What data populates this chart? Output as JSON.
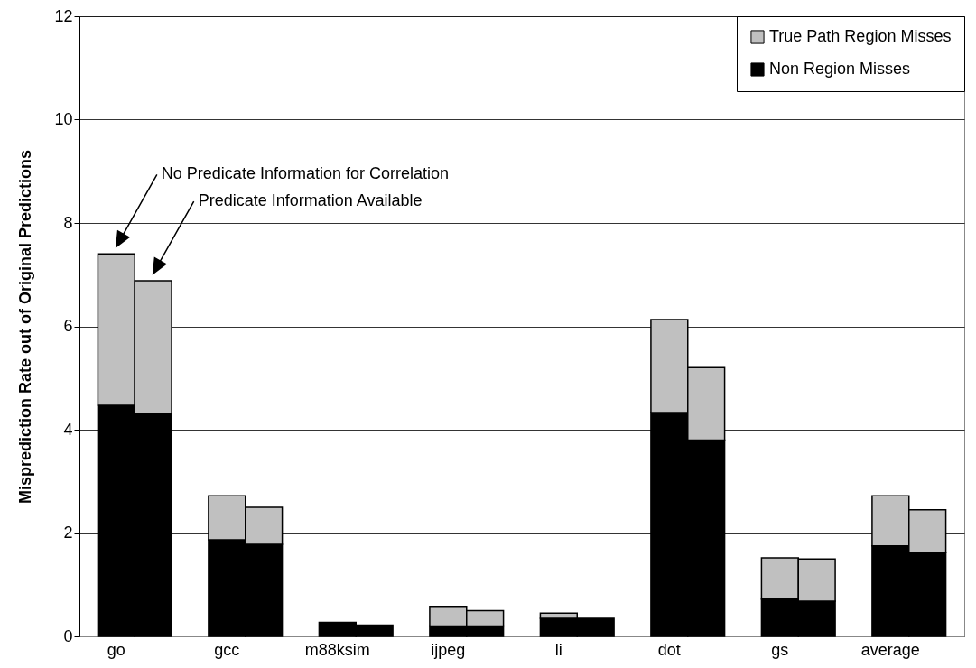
{
  "chart_data": {
    "type": "bar",
    "stacked": true,
    "ylabel": "Misprediction Rate out of Original Predictions",
    "categories": [
      "go",
      null,
      null,
      "gcc",
      null,
      null,
      "m88ksim",
      null,
      null,
      "ijpeg",
      null,
      null,
      "li",
      null,
      null,
      "dot",
      null,
      null,
      "gs",
      null,
      null,
      "average",
      null
    ],
    "series": [
      {
        "name": "Non Region Misses",
        "color": "#000000",
        "values": [
          4.47,
          4.32,
          null,
          1.87,
          1.78,
          null,
          0.27,
          0.22,
          null,
          0.2,
          0.2,
          null,
          0.35,
          0.35,
          null,
          4.33,
          3.8,
          null,
          0.72,
          0.68,
          null,
          1.75,
          1.62
        ]
      },
      {
        "name": "True Path Region Misses",
        "color": "#c0c0c0",
        "values": [
          2.93,
          2.56,
          null,
          0.85,
          0.72,
          null,
          null,
          null,
          null,
          0.38,
          0.3,
          null,
          0.1,
          null,
          null,
          1.8,
          1.4,
          null,
          0.8,
          0.82,
          null,
          0.97,
          0.83
        ]
      }
    ],
    "ylim": [
      0,
      12
    ],
    "yticks": [
      0,
      2,
      4,
      6,
      8,
      10,
      12
    ],
    "grid": "y",
    "legend": "top right",
    "annotations": [
      "No Predicate Information for Correlation",
      "Predicate Information Available"
    ]
  }
}
